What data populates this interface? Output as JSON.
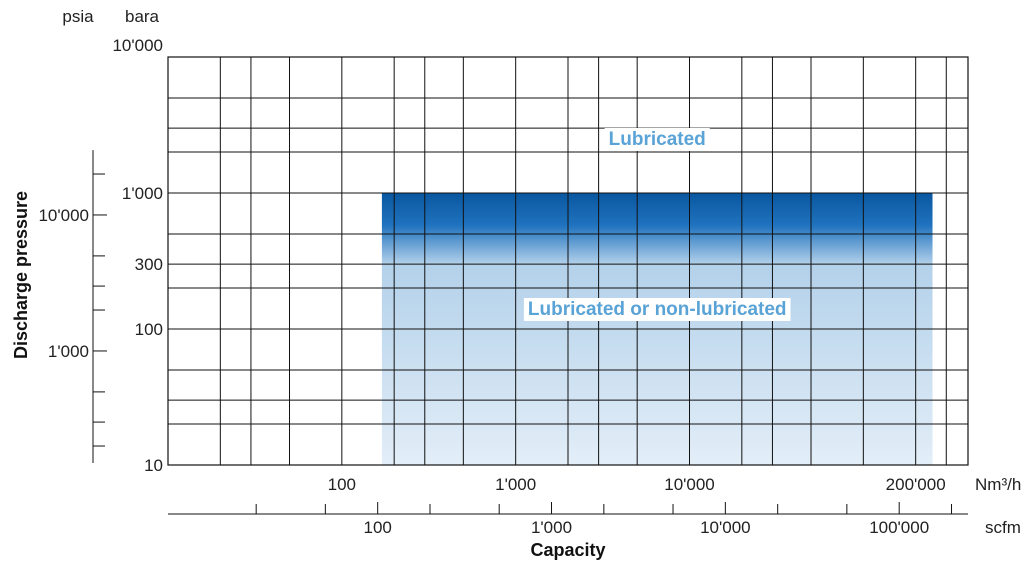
{
  "chart_data": {
    "type": "area",
    "xlabel": "Capacity",
    "ylabel": "Discharge pressure",
    "x_scale": "log",
    "y_scale": "log",
    "xlim_nm3h": [
      10,
      400000
    ],
    "ylim_bara": [
      10,
      10000
    ],
    "grid": true,
    "primary_x_unit": "Nm³/h",
    "secondary_x_unit": "scfm",
    "primary_y_unit": "bara",
    "secondary_y_unit": "psia",
    "x_ticks_nm3h": [
      "100",
      "1'000",
      "10'000",
      "200'000"
    ],
    "x_tick_values_nm3h": [
      100,
      1000,
      10000,
      200000
    ],
    "x_ticks_scfm": [
      "100",
      "1'000",
      "10'000",
      "100'000"
    ],
    "x_tick_values_scfm": [
      100,
      1000,
      10000,
      100000
    ],
    "y_ticks_bara": [
      "10'000",
      "1'000",
      "300",
      "100",
      "10"
    ],
    "y_tick_values_bara": [
      10000,
      1000,
      300,
      100,
      10
    ],
    "y_ticks_psia": [
      "10'000",
      "1'000"
    ],
    "y_tick_values_psia": [
      10000,
      1000
    ],
    "regions": [
      {
        "name": "Lubricated",
        "x_range_nm3h": [
          170,
          250000
        ],
        "y_range_bara": [
          300,
          1000
        ],
        "color": "#0a5ca8"
      },
      {
        "name": "Lubricated or non-lubricated",
        "x_range_nm3h": [
          170,
          250000
        ],
        "y_range_bara": [
          10,
          300
        ],
        "color": "#a9cbe6"
      }
    ],
    "label_color": "#5aa3d6"
  }
}
